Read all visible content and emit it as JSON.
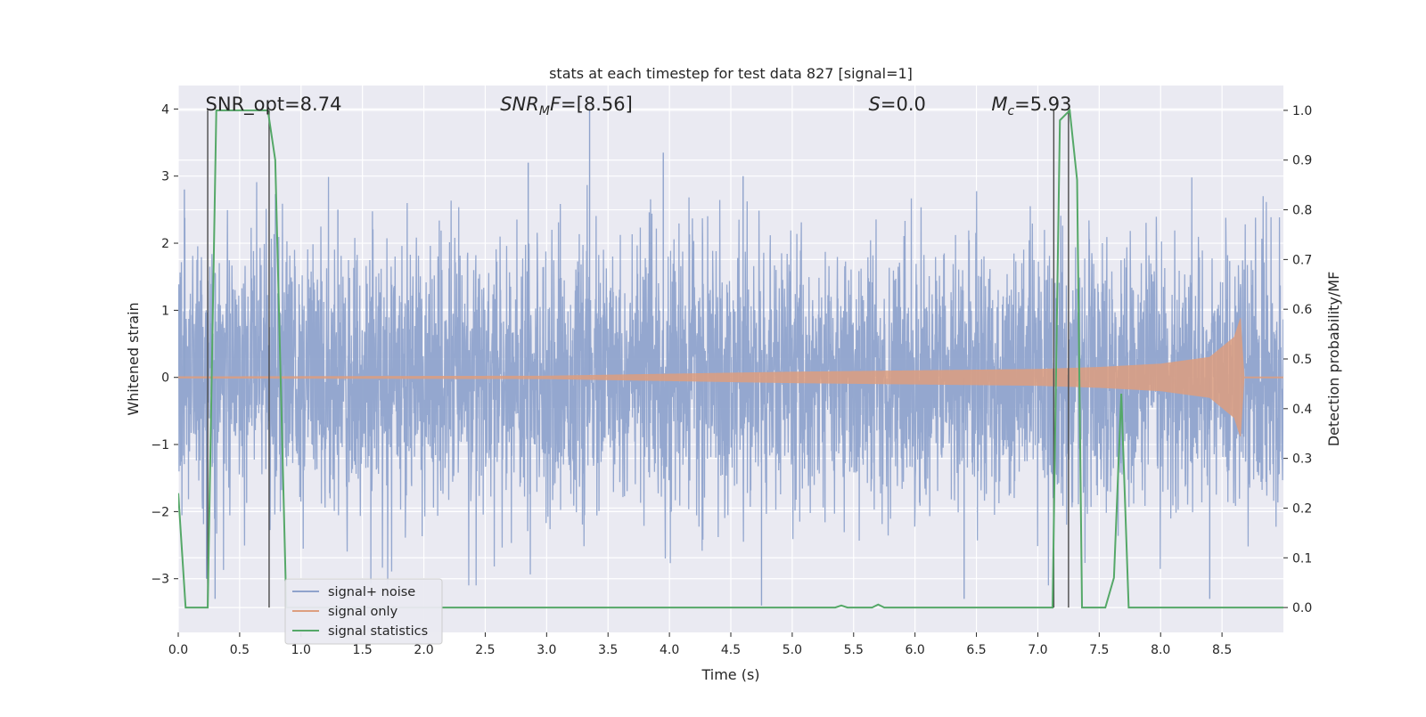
{
  "chart_data": {
    "type": "line",
    "title": "stats at each timestep for test data 827 [signal=1]",
    "xlabel": "Time (s)",
    "ylabel": "Whitened strain",
    "y2label": "Detection probability/MF",
    "xlim": [
      0,
      9.0
    ],
    "ylim": [
      -3.8,
      4.35
    ],
    "y2lim": [
      -0.05,
      1.05
    ],
    "x_ticks": [
      0.0,
      0.5,
      1.0,
      1.5,
      2.0,
      2.5,
      3.0,
      3.5,
      4.0,
      4.5,
      5.0,
      5.5,
      6.0,
      6.5,
      7.0,
      7.5,
      8.0,
      8.5
    ],
    "x_tick_labels": [
      "0.0",
      "0.5",
      "1.0",
      "1.5",
      "2.0",
      "2.5",
      "3.0",
      "3.5",
      "4.0",
      "4.5",
      "5.0",
      "5.5",
      "6.0",
      "6.5",
      "7.0",
      "7.5",
      "8.0",
      "8.5"
    ],
    "y_ticks": [
      -3,
      -2,
      -1,
      0,
      1,
      2,
      3,
      4
    ],
    "y_tick_labels": [
      "−3",
      "−2",
      "−1",
      "0",
      "1",
      "2",
      "3",
      "4"
    ],
    "y2_ticks": [
      0.0,
      0.1,
      0.2,
      0.3,
      0.4,
      0.5,
      0.6,
      0.7,
      0.8,
      0.9,
      1.0
    ],
    "y2_tick_labels": [
      "0.0",
      "0.1",
      "0.2",
      "0.3",
      "0.4",
      "0.5",
      "0.6",
      "0.7",
      "0.8",
      "0.9",
      "1.0"
    ],
    "annotations": [
      {
        "id": "snr-opt",
        "prefix": "SNR_opt=8.74",
        "sub": "",
        "suffix": "",
        "x": 0.2
      },
      {
        "id": "snr-mf",
        "prefix": "SNR",
        "sub": "M",
        "suffix": "F=[8.56]",
        "x": 2.6
      },
      {
        "id": "s-stat",
        "prefix": "S",
        "sub": "",
        "suffix": "=0.0",
        "x": 5.6
      },
      {
        "id": "mc",
        "prefix": "M",
        "sub": "c",
        "suffix": "=5.93",
        "x": 6.6
      }
    ],
    "series": [
      {
        "name": "signal+ noise",
        "color": "#8fa3cc",
        "description": "whitened strain, noise-dominated, approx +/-1 sigma with spikes to ~4",
        "envelope_sigma": 1.0,
        "peak_spikes": [
          [
            0.05,
            2.8
          ],
          [
            0.23,
            -3.0
          ],
          [
            0.3,
            -3.3
          ],
          [
            1.3,
            2.5
          ],
          [
            2.85,
            3.2
          ],
          [
            3.35,
            4.0
          ],
          [
            3.95,
            3.35
          ],
          [
            4.6,
            3.0
          ],
          [
            4.75,
            -3.4
          ],
          [
            6.4,
            -3.3
          ],
          [
            8.4,
            -3.3
          ]
        ]
      },
      {
        "name": "signal only",
        "color": "#dd9e80",
        "description": "chirp with growing amplitude ending near 8.65 s",
        "amplitude_points": [
          [
            0.0,
            0.01
          ],
          [
            3.0,
            0.02
          ],
          [
            4.0,
            0.05
          ],
          [
            5.0,
            0.08
          ],
          [
            6.0,
            0.1
          ],
          [
            7.0,
            0.12
          ],
          [
            7.5,
            0.15
          ],
          [
            8.0,
            0.2
          ],
          [
            8.4,
            0.3
          ],
          [
            8.6,
            0.6
          ],
          [
            8.65,
            0.88
          ],
          [
            8.68,
            0.0
          ],
          [
            9.0,
            0.0
          ]
        ]
      },
      {
        "name": "signal statistics",
        "color": "#55a868",
        "axis": "right",
        "x": [
          0.0,
          0.06,
          0.24,
          0.31,
          0.73,
          0.79,
          0.88,
          1.0,
          5.35,
          5.4,
          5.45,
          5.65,
          5.7,
          5.75,
          7.12,
          7.18,
          7.26,
          7.32,
          7.36,
          7.55,
          7.62,
          7.68,
          7.74,
          9.0
        ],
        "values": [
          0.23,
          0.0,
          0.0,
          1.0,
          1.0,
          0.9,
          0.0,
          0.0,
          0.0,
          0.004,
          0.0,
          0.0,
          0.006,
          0.0,
          0.0,
          0.98,
          1.0,
          0.86,
          0.0,
          0.0,
          0.06,
          0.43,
          0.0,
          0.0
        ]
      }
    ],
    "vertical_markers": [
      {
        "x": 0.24,
        "y_from": 0.0,
        "y_to": 1.0
      },
      {
        "x": 0.74,
        "y_from": 0.0,
        "y_to": 1.0
      },
      {
        "x": 7.13,
        "y_from": 0.0,
        "y_to": 1.0
      },
      {
        "x": 7.25,
        "y_from": 0.0,
        "y_to": 1.0
      }
    ],
    "legend": {
      "location": "lower-left",
      "entries": [
        {
          "label": "signal+ noise",
          "color": "#8fa3cc"
        },
        {
          "label": "signal only",
          "color": "#dd9e80"
        },
        {
          "label": "signal statistics",
          "color": "#55a868"
        }
      ]
    },
    "grid": true
  }
}
